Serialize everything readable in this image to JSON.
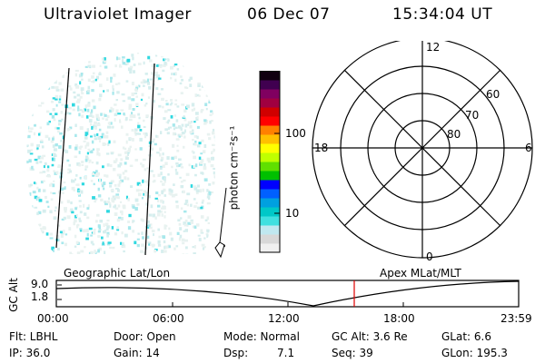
{
  "header": {
    "instrument": "Ultraviolet Imager",
    "date": "06 Dec 07",
    "time": "15:34:04 UT"
  },
  "colorbar": {
    "label": "photon cm⁻²s⁻¹",
    "ticks": [
      "100",
      "10"
    ],
    "colors": [
      "#f0f0f0",
      "#d8d8d8",
      "#c0e8f0",
      "#40e0e0",
      "#00c8c8",
      "#00a0e0",
      "#0060ff",
      "#0000ff",
      "#00c000",
      "#60e000",
      "#c0ff00",
      "#ffff00",
      "#ffc000",
      "#ff8000",
      "#ff0000",
      "#d00000",
      "#a00040",
      "#800060",
      "#400050",
      "#100010"
    ]
  },
  "polar": {
    "mlt_labels": [
      "12",
      "18",
      "6",
      "0"
    ],
    "lat_labels": [
      "60",
      "70",
      "80"
    ]
  },
  "timeline": {
    "left_title": "Geographic Lat/Lon",
    "right_title": "Apex  MLat/MLT",
    "axis_label": "GC Alt",
    "y_ticks": [
      "9.0",
      "1.8"
    ],
    "x_ticks": [
      "00:00",
      "06:00",
      "12:00",
      "18:00",
      "23:59"
    ],
    "marker_color": "#e00000"
  },
  "info": {
    "filter": "Flt: LBHL",
    "ip": "IP: 36.0",
    "door": "Door: Open",
    "gain": "Gain: 14",
    "mode": "Mode: Normal",
    "dsp_label": "Dsp:",
    "dsp_value": "7.1",
    "gc_alt": "GC Alt: 3.6 Re",
    "seq": "Seq: 39",
    "glat": "GLat:   6.6",
    "glon": "GLon: 195.3"
  }
}
